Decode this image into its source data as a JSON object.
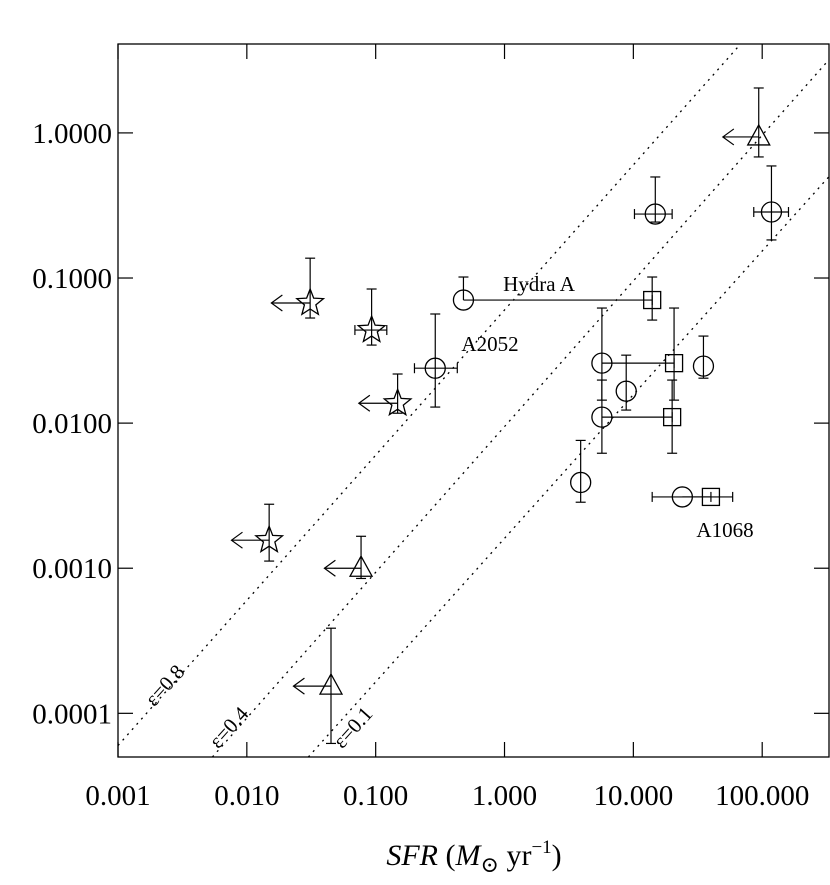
{
  "chart_data": {
    "type": "scatter",
    "xlog": true,
    "ylog": true,
    "xlim": [
      0.001,
      330
    ],
    "ylim": [
      5e-05,
      4.1
    ],
    "xticks": [
      0.001,
      {
        "value": 0.01,
        "label": "0.010"
      },
      {
        "value": 0.1,
        "label": "0.100"
      },
      {
        "value": 1,
        "label": "1.000"
      },
      {
        "value": 10,
        "label": "10.000"
      },
      {
        "value": 100,
        "label": "100.000"
      }
    ],
    "yticks": [
      0.0001,
      {
        "value": 0.001,
        "label": "0.0010"
      },
      {
        "value": 0.01,
        "label": "0.0100"
      },
      {
        "value": 0.1,
        "label": "0.1000"
      },
      {
        "value": 1,
        "label": "1.0000"
      }
    ],
    "xlabel": [
      "SFR",
      " (",
      "M",
      "⊙",
      " yr",
      "−1",
      ")"
    ],
    "color": "#000000",
    "series": [
      {
        "marker": "circle",
        "x": [
          0.48,
          0.29,
          14.8,
          118,
          5.7,
          5.7,
          8.8,
          35,
          3.9,
          24
        ],
        "y": [
          0.0705,
          0.0239,
          0.276,
          0.285,
          0.0259,
          0.011,
          0.0166,
          0.0247,
          0.0039,
          0.0031
        ],
        "ylow": [
          null,
          0.0129,
          0.243,
          0.183,
          0.0144,
          0.0062,
          0.0123,
          0.0204,
          0.00285,
          null
        ],
        "yhigh": [
          0.1016,
          0.0565,
          0.497,
          0.592,
          0.0621,
          0.0198,
          0.0294,
          0.0398,
          0.0076,
          null
        ],
        "xlow": [
          null,
          0.2,
          10.2,
          86,
          null,
          null,
          null,
          null,
          null,
          null
        ],
        "xhigh": [
          14,
          0.43,
          20,
          160,
          20.7,
          20,
          null,
          null,
          null,
          40
        ],
        "arrow_to": [
          null,
          null,
          null,
          null,
          null,
          null,
          null,
          null,
          null,
          null
        ]
      },
      {
        "marker": "square",
        "x": [
          14,
          20.7,
          20,
          40
        ],
        "y": [
          0.0705,
          0.0259,
          0.011,
          0.0031
        ],
        "ylow": [
          0.0513,
          0.0144,
          0.0062,
          null
        ],
        "yhigh": [
          0.1016,
          0.0621,
          0.0198,
          null
        ],
        "xlow": [
          null,
          null,
          null,
          14
        ],
        "xhigh": [
          null,
          null,
          null,
          59
        ],
        "arrow_to": [
          null,
          null,
          null,
          null
        ]
      },
      {
        "marker": "star",
        "x": [
          0.031,
          0.093,
          0.148,
          0.0149
        ],
        "y": [
          0.0673,
          0.0438,
          0.0137,
          0.00156
        ],
        "ylow": [
          0.053,
          0.0345,
          0.0117,
          0.00112
        ],
        "yhigh": [
          0.137,
          0.084,
          0.0218,
          0.00276
        ],
        "xlow": [
          null,
          0.069,
          null,
          null
        ],
        "xhigh": [
          null,
          0.122,
          null,
          null
        ],
        "arrow_to": [
          0.0155,
          null,
          0.074,
          0.0076
        ]
      },
      {
        "marker": "triangle",
        "x": [
          94,
          0.077,
          0.045
        ],
        "y": [
          0.938,
          0.001,
          0.000154
        ],
        "ylow": [
          0.683,
          0.00085,
          6.2e-05
        ],
        "yhigh": [
          2.04,
          0.00166,
          0.000386
        ],
        "xlow": [
          null,
          null,
          null
        ],
        "xhigh": [
          null,
          null,
          null
        ],
        "arrow_to": [
          49.5,
          0.04,
          0.023
        ]
      }
    ],
    "lines": [
      {
        "label": "ε=0.8",
        "x": [
          0.001,
          68
        ],
        "y": [
          6e-05,
          4.1
        ]
      },
      {
        "label": "ε=0.4",
        "x": [
          0.0054,
          330
        ],
        "y": [
          5e-05,
          3.2
        ]
      },
      {
        "label": "ε=0.1",
        "x": [
          0.03,
          330
        ],
        "y": [
          5e-05,
          0.5
        ]
      }
    ],
    "annotations": [
      "Hydra A",
      "A2052",
      "A1068"
    ]
  }
}
